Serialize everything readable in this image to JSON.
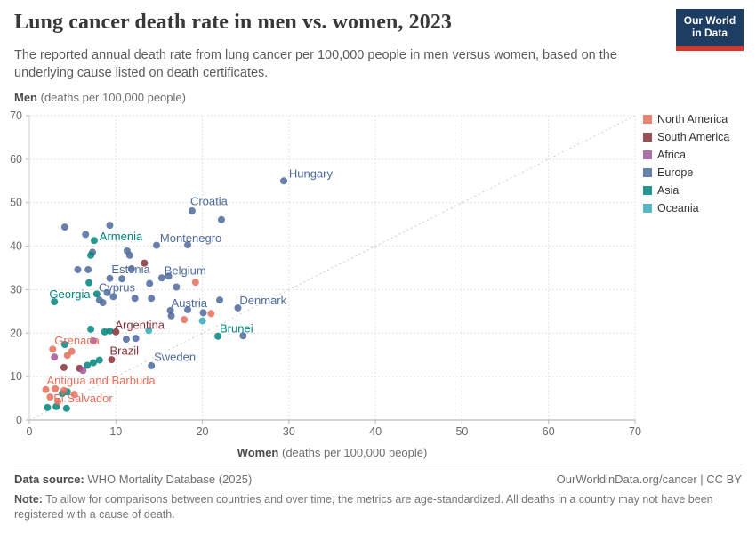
{
  "header": {
    "title": "Lung cancer death rate in men vs. women, 2023",
    "subtitle": "The reported annual death rate from lung cancer per 100,000 people in men versus women, based on the underlying cause listed on death certificates."
  },
  "logo": {
    "line1": "Our World",
    "line2": "in Data",
    "bg_color": "#1d3d63",
    "bar_color": "#d7382e"
  },
  "axes": {
    "y_bold": "Men",
    "y_rest": " (deaths per 100,000 people)",
    "x_bold": "Women",
    "x_rest": " (deaths per 100,000 people)"
  },
  "legend": [
    {
      "label": "North America",
      "key": "NA"
    },
    {
      "label": "South America",
      "key": "SA"
    },
    {
      "label": "Africa",
      "key": "AF"
    },
    {
      "label": "Europe",
      "key": "EU"
    },
    {
      "label": "Asia",
      "key": "AS"
    },
    {
      "label": "Oceania",
      "key": "OC"
    }
  ],
  "colors": {
    "NA": "#E56E5A",
    "SA": "#883039",
    "AF": "#A2559C",
    "EU": "#4C6A9C",
    "AS": "#00847E",
    "OC": "#38AABA"
  },
  "chart_data": {
    "type": "scatter",
    "title": "Lung cancer death rate in men vs. women, 2023",
    "xlabel": "Women (deaths per 100,000 people)",
    "ylabel": "Men (deaths per 100,000 people)",
    "xlim": [
      0,
      70
    ],
    "ylim": [
      0,
      70
    ],
    "ticks": [
      0,
      10,
      20,
      30,
      40,
      50,
      60,
      70
    ],
    "grid": "dashed",
    "diagonal_line": true,
    "legend_position": "right",
    "series": [
      {
        "name": "Europe",
        "key": "EU",
        "points": [
          [
            29.4,
            55.0
          ],
          [
            18.8,
            48.1
          ],
          [
            22.2,
            46.1
          ],
          [
            9.3,
            44.8
          ],
          [
            4.1,
            44.4
          ],
          [
            6.5,
            42.7
          ],
          [
            14.7,
            40.2
          ],
          [
            18.3,
            40.3
          ],
          [
            11.3,
            38.9
          ],
          [
            11.6,
            37.9
          ],
          [
            7.3,
            38.6
          ],
          [
            5.6,
            34.6
          ],
          [
            6.8,
            34.6
          ],
          [
            11.8,
            34.8
          ],
          [
            9.3,
            32.6
          ],
          [
            10.7,
            32.5
          ],
          [
            15.3,
            32.7
          ],
          [
            16.1,
            33.1
          ],
          [
            13.9,
            31.4
          ],
          [
            17.0,
            30.6
          ],
          [
            9.0,
            29.3
          ],
          [
            9.7,
            28.4
          ],
          [
            8.1,
            27.6
          ],
          [
            8.5,
            27.0
          ],
          [
            12.2,
            28.0
          ],
          [
            14.1,
            28.0
          ],
          [
            22.0,
            27.6
          ],
          [
            24.1,
            25.8
          ],
          [
            16.3,
            25.2
          ],
          [
            16.4,
            24.0
          ],
          [
            18.3,
            25.4
          ],
          [
            20.1,
            24.7
          ],
          [
            24.7,
            19.4
          ],
          [
            11.2,
            18.6
          ],
          [
            12.3,
            18.8
          ],
          [
            14.1,
            12.5
          ]
        ]
      },
      {
        "name": "Asia",
        "key": "AS",
        "points": [
          [
            7.5,
            41.3
          ],
          [
            7.1,
            37.9
          ],
          [
            6.9,
            31.6
          ],
          [
            7.8,
            29.0
          ],
          [
            2.9,
            27.2
          ],
          [
            4.1,
            17.4
          ],
          [
            7.1,
            20.9
          ],
          [
            8.7,
            20.3
          ],
          [
            9.3,
            20.5
          ],
          [
            6.7,
            12.6
          ],
          [
            7.4,
            13.2
          ],
          [
            8.1,
            13.8
          ],
          [
            3.8,
            6.1
          ],
          [
            4.4,
            6.5
          ],
          [
            2.1,
            2.9
          ],
          [
            3.1,
            3.1
          ],
          [
            4.3,
            2.7
          ],
          [
            21.8,
            19.3
          ]
        ]
      },
      {
        "name": "North America",
        "key": "NA",
        "points": [
          [
            19.2,
            31.7
          ],
          [
            21.0,
            24.5
          ],
          [
            17.9,
            23.1
          ],
          [
            2.7,
            16.3
          ],
          [
            4.4,
            14.9
          ],
          [
            4.9,
            15.8
          ],
          [
            1.9,
            7.0
          ],
          [
            3.0,
            7.2
          ],
          [
            4.0,
            6.8
          ],
          [
            5.2,
            5.9
          ],
          [
            2.4,
            5.3
          ],
          [
            3.3,
            4.3
          ]
        ]
      },
      {
        "name": "South America",
        "key": "SA",
        "points": [
          [
            13.3,
            36.1
          ],
          [
            10.0,
            20.3
          ],
          [
            9.5,
            13.9
          ],
          [
            4.0,
            12.1
          ],
          [
            5.8,
            11.9
          ]
        ]
      },
      {
        "name": "Africa",
        "key": "AF",
        "points": [
          [
            2.9,
            14.5
          ],
          [
            7.4,
            18.2
          ],
          [
            6.2,
            11.4
          ]
        ]
      },
      {
        "name": "Oceania",
        "key": "OC",
        "points": [
          [
            20.0,
            22.8
          ],
          [
            13.8,
            20.6
          ]
        ]
      }
    ],
    "point_labels": [
      {
        "text": "Hungary",
        "x": 30.0,
        "y": 56.6,
        "key": "EU"
      },
      {
        "text": "Croatia",
        "x": 18.6,
        "y": 50.2,
        "key": "EU"
      },
      {
        "text": "Montenegro",
        "x": 15.1,
        "y": 41.8,
        "key": "EU"
      },
      {
        "text": "Armenia",
        "x": 8.1,
        "y": 42.2,
        "key": "AS"
      },
      {
        "text": "Estonia",
        "x": 9.5,
        "y": 34.6,
        "key": "EU"
      },
      {
        "text": "Belgium",
        "x": 15.6,
        "y": 34.3,
        "key": "EU"
      },
      {
        "text": "Georgia",
        "x": 2.3,
        "y": 28.9,
        "key": "AS"
      },
      {
        "text": "Cyprus",
        "x": 8.0,
        "y": 30.4,
        "key": "EU"
      },
      {
        "text": "Austria",
        "x": 16.4,
        "y": 26.8,
        "key": "EU"
      },
      {
        "text": "Denmark",
        "x": 24.3,
        "y": 27.4,
        "key": "EU"
      },
      {
        "text": "Argentina",
        "x": 9.9,
        "y": 21.8,
        "key": "SA"
      },
      {
        "text": "Brunei",
        "x": 22.0,
        "y": 21.0,
        "key": "AS"
      },
      {
        "text": "Grenada",
        "x": 2.9,
        "y": 18.2,
        "key": "NA"
      },
      {
        "text": "Brazil",
        "x": 9.3,
        "y": 15.9,
        "key": "SA"
      },
      {
        "text": "Sweden",
        "x": 14.4,
        "y": 14.4,
        "key": "EU"
      },
      {
        "text": "Antigua and Barbuda",
        "x": 2.0,
        "y": 9.0,
        "key": "NA"
      },
      {
        "text": "El Salvador",
        "x": 2.8,
        "y": 4.9,
        "key": "NA"
      }
    ]
  },
  "footer": {
    "source_label": "Data source:",
    "source_value": " WHO Mortality Database (2025)",
    "credit": "OurWorldinData.org/cancer | CC BY",
    "note_label": "Note:",
    "note_text": " To allow for comparisons between countries and over time, the metrics are age-standardized. All deaths in a country may not have been registered with a cause of death."
  }
}
